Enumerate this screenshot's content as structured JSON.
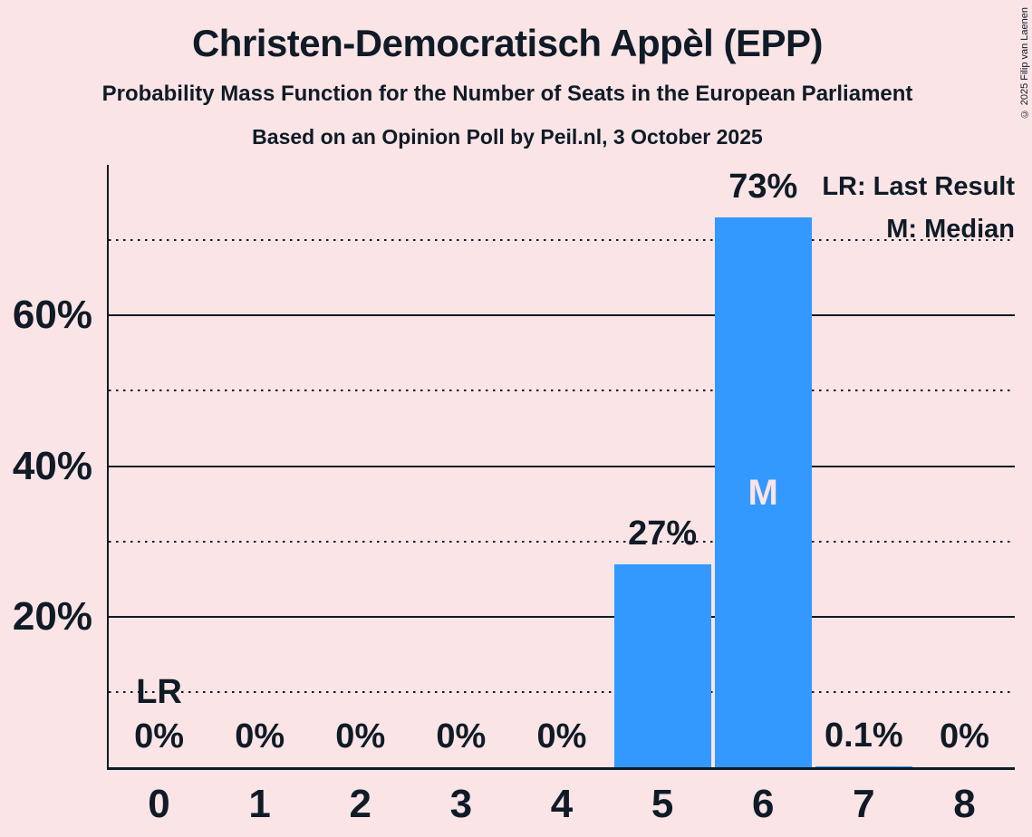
{
  "title": "Christen-Democratisch Appèl (EPP)",
  "subtitle": "Probability Mass Function for the Number of Seats in the European Parliament",
  "source_line": "Based on an Opinion Poll by Peil.nl, 3 October 2025",
  "copyright": "© 2025 Filip van Laenen",
  "legend": {
    "last_result": "LR: Last Result",
    "median": "M: Median"
  },
  "colors": {
    "background": "#fbe4e5",
    "bar": "#3399ff",
    "text": "#0f1b27",
    "median_letter": "#fbe4e5"
  },
  "chart_data": {
    "type": "bar",
    "title": "Christen-Democratisch Appèl (EPP)",
    "categories": [
      "0",
      "1",
      "2",
      "3",
      "4",
      "5",
      "6",
      "7",
      "8"
    ],
    "values": [
      0,
      0,
      0,
      0,
      0,
      27,
      73,
      0.1,
      0
    ],
    "value_labels": [
      "0%",
      "0%",
      "0%",
      "0%",
      "0%",
      "27%",
      "73%",
      "0.1%",
      "0%"
    ],
    "xlabel": "",
    "ylabel": "",
    "ylim": [
      0,
      80
    ],
    "yticks": [
      {
        "value": 20,
        "label": "20%"
      },
      {
        "value": 40,
        "label": "40%"
      },
      {
        "value": 60,
        "label": "60%"
      }
    ],
    "solid_gridlines": [
      20,
      40,
      60
    ],
    "dotted_gridlines": [
      10,
      30,
      50,
      70
    ],
    "grid": "horizontal only",
    "legend_position": "top-right",
    "annotations": {
      "last_result_label": "LR",
      "last_result_category": "0",
      "median_label": "M",
      "median_category": "6"
    }
  }
}
